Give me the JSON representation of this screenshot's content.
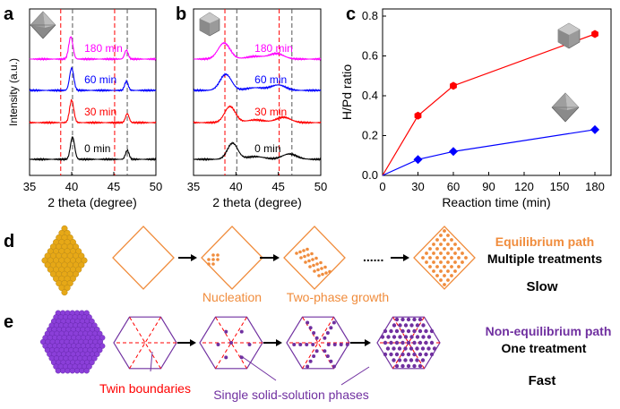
{
  "colors": {
    "black": "#000000",
    "blue": "#0000ff",
    "red": "#ff0000",
    "magenta": "#ff00ff",
    "orange": "#f08c3c",
    "purple": "#7030a0",
    "gold": "#e6a817",
    "violet": "#8b3fd9"
  },
  "chart_data": [
    {
      "panel": "a",
      "type": "line",
      "xlabel": "2 theta (degree)",
      "ylabel": "Intensity (a.u.)",
      "xlim": [
        35,
        50
      ],
      "xticks": [
        "35",
        "40",
        "45",
        "50"
      ],
      "series": [
        {
          "name": "0 min",
          "peaks": [
            40.1,
            46.6
          ]
        },
        {
          "name": "30 min",
          "peaks": [
            40.0,
            46.6
          ]
        },
        {
          "name": "60 min",
          "peaks": [
            40.0,
            46.5
          ]
        },
        {
          "name": "180 min",
          "peaks": [
            39.9,
            46.5
          ]
        }
      ],
      "reference_lines_deg": [
        38.7,
        40.1,
        45.1,
        46.6
      ]
    },
    {
      "panel": "b",
      "type": "line",
      "xlabel": "2 theta (degree)",
      "ylabel": "",
      "xlim": [
        35,
        50
      ],
      "xticks": [
        "35",
        "40",
        "45",
        "50"
      ],
      "series": [
        {
          "name": "0 min",
          "peaks": [
            39.6,
            46.3
          ]
        },
        {
          "name": "30 min",
          "peaks": [
            39.3,
            45.6
          ]
        },
        {
          "name": "60 min",
          "peaks": [
            38.8,
            45.0
          ]
        },
        {
          "name": "180 min",
          "peaks": [
            38.6,
            44.8
          ]
        }
      ],
      "reference_lines_deg": [
        38.7,
        40.1,
        45.1,
        46.6
      ]
    },
    {
      "panel": "c",
      "type": "line",
      "xlabel": "Reaction time (min)",
      "ylabel": "H/Pd ratio",
      "xlim": [
        0,
        180
      ],
      "ylim": [
        0,
        0.8
      ],
      "xticks": [
        "0",
        "30",
        "60",
        "90",
        "120",
        "150",
        "180"
      ],
      "yticks": [
        "0.0",
        "0.2",
        "0.4",
        "0.6",
        "0.8"
      ],
      "x": [
        0,
        30,
        60,
        180
      ],
      "series": [
        {
          "name": "icosahedron",
          "values": [
            0,
            0.3,
            0.45,
            0.71
          ]
        },
        {
          "name": "octahedron",
          "values": [
            0,
            0.08,
            0.12,
            0.23
          ]
        }
      ]
    }
  ],
  "panels": {
    "a": "a",
    "b": "b",
    "c": "c",
    "d": "d",
    "e": "e"
  },
  "schematic_d": {
    "nucleation": "Nucleation",
    "two_phase": "Two-phase growth",
    "dots": "......",
    "path": "Equilibrium path",
    "treatments": "Multiple treatments",
    "speed": "Slow"
  },
  "schematic_e": {
    "twin": "Twin boundaries",
    "single": "Single solid-solution phases",
    "path": "Non-equilibrium path",
    "treatments": "One treatment",
    "speed": "Fast"
  }
}
